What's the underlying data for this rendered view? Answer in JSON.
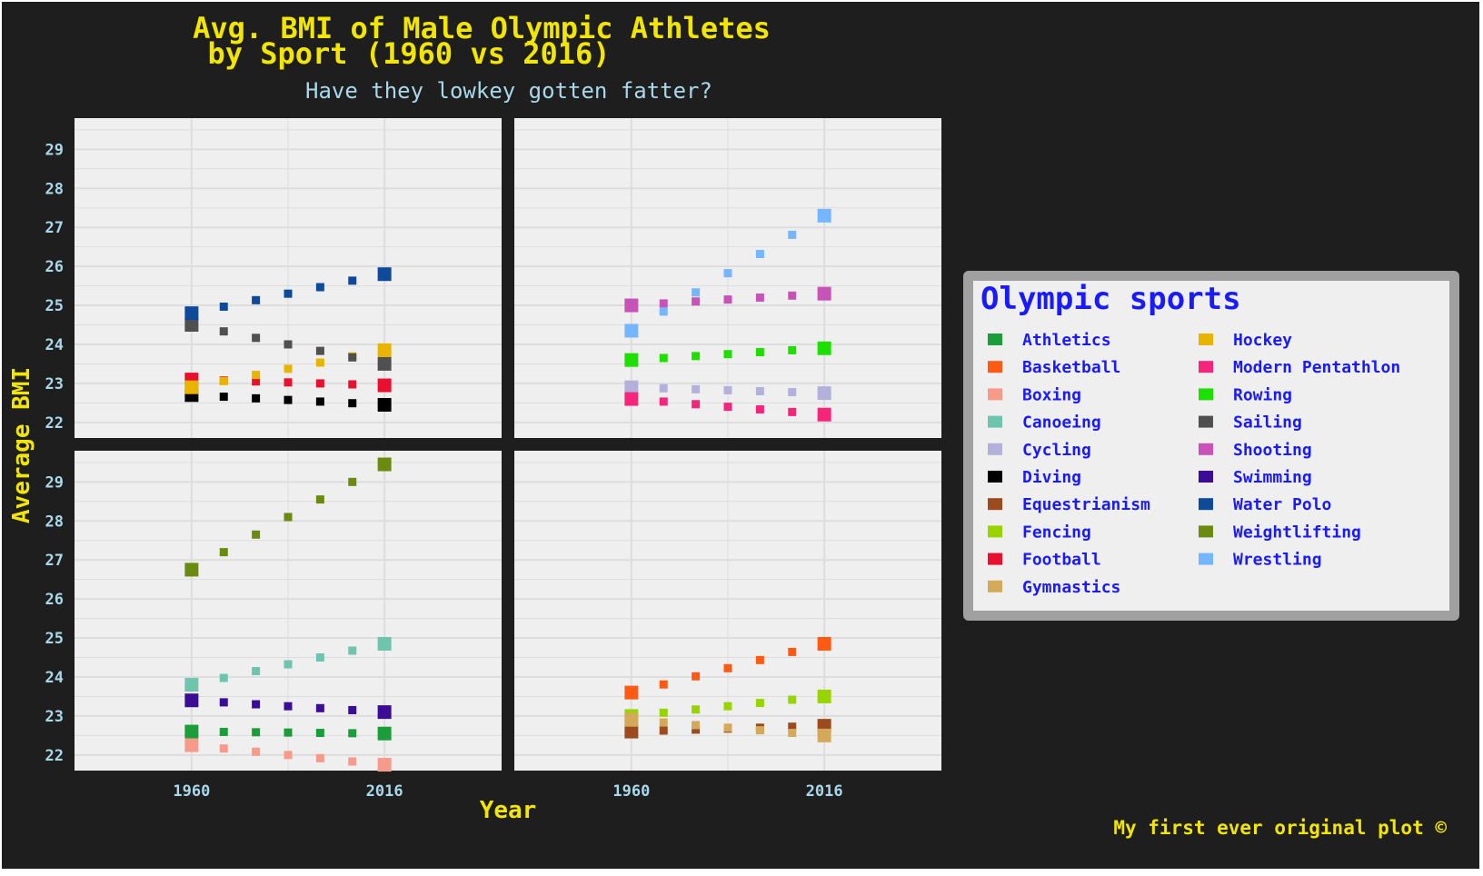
{
  "chart_data": {
    "type": "scatter",
    "title_line1": "Avg. BMI of Male Olympic Athletes",
    "title_line2": "by Sport (1960 vs 2016)",
    "subtitle": "Have they lowkey gotten fatter?",
    "xlabel": "Year",
    "ylabel": "Average BMI",
    "caption": "My first ever original plot ©",
    "x_ticks": [
      "1960",
      "2016"
    ],
    "y_ticks": [
      22,
      23,
      24,
      25,
      26,
      27,
      28,
      29
    ],
    "ylim": [
      21.6,
      29.8
    ],
    "xlim": [
      1926,
      2050
    ],
    "grid": true,
    "legend_position": "right",
    "legend_title": "Olympic sports",
    "legend_columns": [
      [
        "Athletics",
        "Basketball",
        "Boxing",
        "Canoeing",
        "Cycling",
        "Diving",
        "Equestrianism",
        "Fencing",
        "Football",
        "Gymnastics"
      ],
      [
        "Hockey",
        "Modern Pentathlon",
        "Rowing",
        "Sailing",
        "Shooting",
        "Swimming",
        "Water Polo",
        "Weightlifting",
        "Wrestling"
      ]
    ],
    "series": [
      {
        "name": "Athletics",
        "color": "#1b9e3a",
        "panel": 2,
        "x": [
          1960,
          2016
        ],
        "y": [
          22.6,
          22.55
        ]
      },
      {
        "name": "Basketball",
        "color": "#ff5a14",
        "panel": 3,
        "x": [
          1960,
          2016
        ],
        "y": [
          23.6,
          24.85
        ]
      },
      {
        "name": "Boxing",
        "color": "#f79a8a",
        "panel": 2,
        "x": [
          1960,
          2016
        ],
        "y": [
          22.25,
          21.75
        ]
      },
      {
        "name": "Canoeing",
        "color": "#6ec4ac",
        "panel": 2,
        "x": [
          1960,
          2016
        ],
        "y": [
          23.8,
          24.85
        ]
      },
      {
        "name": "Cycling",
        "color": "#b3b0dc",
        "panel": 1,
        "x": [
          1960,
          2016
        ],
        "y": [
          22.9,
          22.75
        ]
      },
      {
        "name": "Diving",
        "color": "#000000",
        "panel": 0,
        "x": [
          1960,
          2016
        ],
        "y": [
          22.7,
          22.45
        ]
      },
      {
        "name": "Equestrianism",
        "color": "#9c4a1e",
        "panel": 3,
        "x": [
          1960,
          2016
        ],
        "y": [
          22.6,
          22.75
        ]
      },
      {
        "name": "Fencing",
        "color": "#98d400",
        "panel": 3,
        "x": [
          1960,
          2016
        ],
        "y": [
          23.0,
          23.5
        ]
      },
      {
        "name": "Football",
        "color": "#e8102e",
        "panel": 0,
        "x": [
          1960,
          2016
        ],
        "y": [
          23.1,
          22.95
        ]
      },
      {
        "name": "Gymnastics",
        "color": "#d4aa5a",
        "panel": 3,
        "x": [
          1960,
          2016
        ],
        "y": [
          22.9,
          22.5
        ]
      },
      {
        "name": "Hockey",
        "color": "#e8b400",
        "panel": 0,
        "x": [
          1960,
          2016
        ],
        "y": [
          22.9,
          23.85
        ]
      },
      {
        "name": "Modern Pentathlon",
        "color": "#f4257a",
        "panel": 1,
        "x": [
          1960,
          2016
        ],
        "y": [
          22.6,
          22.2
        ]
      },
      {
        "name": "Rowing",
        "color": "#1ee000",
        "panel": 1,
        "x": [
          1960,
          2016
        ],
        "y": [
          23.6,
          23.9
        ]
      },
      {
        "name": "Sailing",
        "color": "#505050",
        "panel": 0,
        "x": [
          1960,
          2016
        ],
        "y": [
          24.5,
          23.5
        ]
      },
      {
        "name": "Shooting",
        "color": "#c853b8",
        "panel": 1,
        "x": [
          1960,
          2016
        ],
        "y": [
          25.0,
          25.3
        ]
      },
      {
        "name": "Swimming",
        "color": "#3b0c96",
        "panel": 2,
        "x": [
          1960,
          2016
        ],
        "y": [
          23.4,
          23.1
        ]
      },
      {
        "name": "Water Polo",
        "color": "#0e4a9c",
        "panel": 0,
        "x": [
          1960,
          2016
        ],
        "y": [
          24.8,
          25.8
        ]
      },
      {
        "name": "Weightlifting",
        "color": "#6b8a10",
        "panel": 2,
        "x": [
          1960,
          2016
        ],
        "y": [
          26.75,
          29.45
        ]
      },
      {
        "name": "Wrestling",
        "color": "#74b6ff",
        "panel": 1,
        "x": [
          1960,
          2016
        ],
        "y": [
          24.35,
          27.3
        ]
      }
    ]
  },
  "colors": {
    "background": "#1e1e1e",
    "panel": "#efefef",
    "gridline": "#dddddd",
    "legend_box": "#efefef",
    "legend_border": "#a0a0a0"
  }
}
